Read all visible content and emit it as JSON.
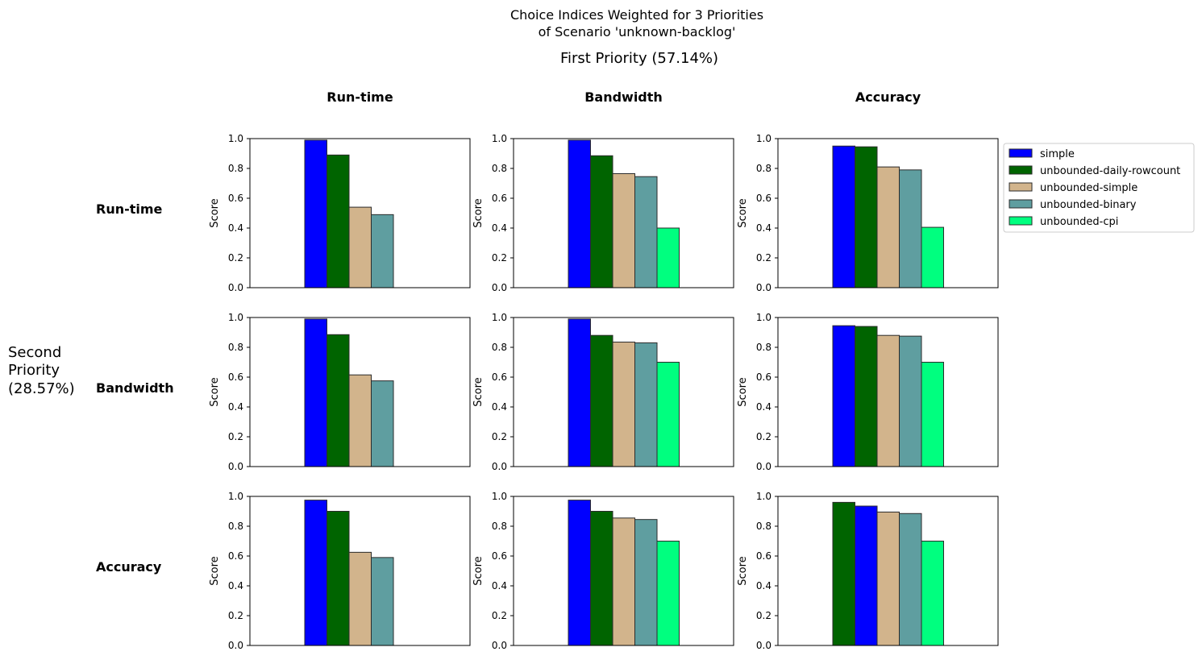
{
  "title": {
    "line1": "Choice Indices Weighted for 3 Priorities",
    "line2": "of Scenario 'unknown-backlog'"
  },
  "first_priority_label": "First Priority (57.14%)",
  "second_priority_label": [
    "Second",
    "Priority",
    "(28.57%)"
  ],
  "columns": [
    "Run-time",
    "Bandwidth",
    "Accuracy"
  ],
  "rows": [
    "Run-time",
    "Bandwidth",
    "Accuracy"
  ],
  "legend": [
    {
      "name": "simple",
      "color": "#0000ff"
    },
    {
      "name": "unbounded-daily-rowcount",
      "color": "#006400"
    },
    {
      "name": "unbounded-simple",
      "color": "#d2b48c"
    },
    {
      "name": "unbounded-binary",
      "color": "#5f9ea0"
    },
    {
      "name": "unbounded-cpi",
      "color": "#00ff7f"
    }
  ],
  "chart_data": {
    "type": "bar",
    "layout": "3x3 grid",
    "ylabel": "Score",
    "ylim": [
      0,
      1.0
    ],
    "yticks": [
      "0.0",
      "0.2",
      "0.4",
      "0.6",
      "0.8",
      "1.0"
    ],
    "grid": false,
    "legend_position": "right of top-right panel",
    "panels": [
      {
        "row": "Run-time",
        "col": "Run-time",
        "bars": [
          {
            "series": "simple",
            "value": 0.99
          },
          {
            "series": "unbounded-daily-rowcount",
            "value": 0.89
          },
          {
            "series": "unbounded-simple",
            "value": 0.54
          },
          {
            "series": "unbounded-binary",
            "value": 0.49
          },
          {
            "series": "unbounded-cpi",
            "value": 0.0
          }
        ]
      },
      {
        "row": "Run-time",
        "col": "Bandwidth",
        "bars": [
          {
            "series": "simple",
            "value": 0.99
          },
          {
            "series": "unbounded-daily-rowcount",
            "value": 0.885
          },
          {
            "series": "unbounded-simple",
            "value": 0.765
          },
          {
            "series": "unbounded-binary",
            "value": 0.745
          },
          {
            "series": "unbounded-cpi",
            "value": 0.4
          }
        ]
      },
      {
        "row": "Run-time",
        "col": "Accuracy",
        "bars": [
          {
            "series": "simple",
            "value": 0.95
          },
          {
            "series": "unbounded-daily-rowcount",
            "value": 0.945
          },
          {
            "series": "unbounded-simple",
            "value": 0.81
          },
          {
            "series": "unbounded-binary",
            "value": 0.79
          },
          {
            "series": "unbounded-cpi",
            "value": 0.405
          }
        ]
      },
      {
        "row": "Bandwidth",
        "col": "Run-time",
        "bars": [
          {
            "series": "simple",
            "value": 0.99
          },
          {
            "series": "unbounded-daily-rowcount",
            "value": 0.885
          },
          {
            "series": "unbounded-simple",
            "value": 0.615
          },
          {
            "series": "unbounded-binary",
            "value": 0.575
          },
          {
            "series": "unbounded-cpi",
            "value": 0.0
          }
        ]
      },
      {
        "row": "Bandwidth",
        "col": "Bandwidth",
        "bars": [
          {
            "series": "simple",
            "value": 0.99
          },
          {
            "series": "unbounded-daily-rowcount",
            "value": 0.88
          },
          {
            "series": "unbounded-simple",
            "value": 0.835
          },
          {
            "series": "unbounded-binary",
            "value": 0.83
          },
          {
            "series": "unbounded-cpi",
            "value": 0.7
          }
        ]
      },
      {
        "row": "Bandwidth",
        "col": "Accuracy",
        "bars": [
          {
            "series": "simple",
            "value": 0.945
          },
          {
            "series": "unbounded-daily-rowcount",
            "value": 0.94
          },
          {
            "series": "unbounded-simple",
            "value": 0.88
          },
          {
            "series": "unbounded-binary",
            "value": 0.875
          },
          {
            "series": "unbounded-cpi",
            "value": 0.7
          }
        ]
      },
      {
        "row": "Accuracy",
        "col": "Run-time",
        "bars": [
          {
            "series": "simple",
            "value": 0.975
          },
          {
            "series": "unbounded-daily-rowcount",
            "value": 0.9
          },
          {
            "series": "unbounded-simple",
            "value": 0.625
          },
          {
            "series": "unbounded-binary",
            "value": 0.59
          },
          {
            "series": "unbounded-cpi",
            "value": 0.0
          }
        ]
      },
      {
        "row": "Accuracy",
        "col": "Bandwidth",
        "bars": [
          {
            "series": "simple",
            "value": 0.975
          },
          {
            "series": "unbounded-daily-rowcount",
            "value": 0.9
          },
          {
            "series": "unbounded-simple",
            "value": 0.855
          },
          {
            "series": "unbounded-binary",
            "value": 0.845
          },
          {
            "series": "unbounded-cpi",
            "value": 0.7
          }
        ]
      },
      {
        "row": "Accuracy",
        "col": "Accuracy",
        "bars": [
          {
            "series": "unbounded-daily-rowcount",
            "value": 0.96
          },
          {
            "series": "simple",
            "value": 0.935
          },
          {
            "series": "unbounded-simple",
            "value": 0.895
          },
          {
            "series": "unbounded-binary",
            "value": 0.885
          },
          {
            "series": "unbounded-cpi",
            "value": 0.7
          }
        ]
      }
    ]
  }
}
